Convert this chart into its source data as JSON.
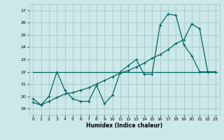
{
  "title": "",
  "xlabel": "Humidex (Indice chaleur)",
  "xlim": [
    -0.5,
    23.5
  ],
  "ylim": [
    18.5,
    27.5
  ],
  "yticks": [
    19,
    20,
    21,
    22,
    23,
    24,
    25,
    26,
    27
  ],
  "xticks": [
    0,
    1,
    2,
    3,
    4,
    5,
    6,
    7,
    8,
    9,
    10,
    11,
    12,
    13,
    14,
    15,
    16,
    17,
    18,
    19,
    20,
    21,
    22,
    23
  ],
  "background_color": "#cce8e8",
  "grid_color": "#aacccc",
  "line_color": "#006666",
  "line1_x": [
    0,
    1,
    2,
    3,
    4,
    5,
    6,
    7,
    8,
    9,
    10,
    11,
    12,
    13,
    14,
    15,
    16,
    17,
    18,
    19,
    20,
    21,
    22,
    23
  ],
  "line1_y": [
    19.8,
    19.3,
    20.0,
    22.0,
    20.5,
    19.8,
    19.6,
    19.6,
    20.9,
    19.4,
    20.1,
    22.0,
    22.5,
    23.0,
    21.8,
    21.8,
    25.8,
    26.7,
    26.6,
    24.2,
    23.3,
    22.0,
    22.0,
    22.0
  ],
  "line2_x": [
    0,
    1,
    2,
    3,
    4,
    5,
    6,
    7,
    8,
    9,
    10,
    11,
    12,
    13,
    14,
    15,
    16,
    17,
    18,
    19,
    20,
    21,
    22,
    23
  ],
  "line2_y": [
    19.5,
    19.3,
    19.6,
    19.9,
    20.2,
    20.3,
    20.5,
    20.7,
    21.0,
    21.3,
    21.6,
    21.9,
    22.1,
    22.4,
    22.7,
    23.1,
    23.4,
    23.8,
    24.3,
    24.6,
    25.9,
    25.5,
    22.0,
    22.0
  ],
  "line3_x": [
    0,
    3,
    23
  ],
  "line3_y": [
    22.0,
    22.0,
    22.0
  ]
}
